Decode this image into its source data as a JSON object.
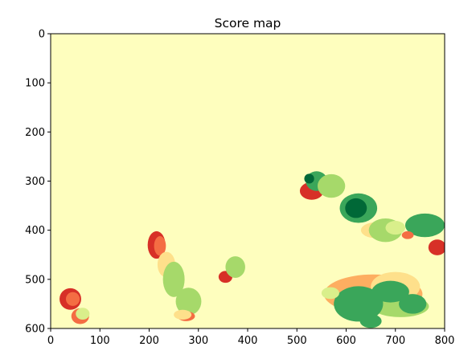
{
  "chart_data": {
    "type": "heatmap",
    "title": "Score map",
    "xlabel": "",
    "ylabel": "",
    "xlim": [
      0,
      800
    ],
    "ylim": [
      600,
      0
    ],
    "xticks": [
      0,
      100,
      200,
      300,
      400,
      500,
      600,
      700,
      800
    ],
    "yticks": [
      0,
      100,
      200,
      300,
      400,
      500,
      600
    ],
    "colormap": "RdYlGn",
    "background_color": "#fefebe",
    "colors": {
      "red": "#d73027",
      "orange": "#f46d43",
      "light_orange": "#fdae61",
      "tan": "#fee08b",
      "pale_yellow": "#fefebe",
      "yellow_green": "#d9ef8b",
      "light_green": "#a6d96a",
      "green": "#3aa65a",
      "dark_green": "#006837"
    },
    "regions": [
      {
        "cx": 40,
        "cy": 540,
        "rx": 22,
        "ry": 22,
        "color": "red"
      },
      {
        "cx": 45,
        "cy": 540,
        "rx": 14,
        "ry": 14,
        "color": "orange"
      },
      {
        "cx": 60,
        "cy": 575,
        "rx": 18,
        "ry": 16,
        "color": "orange"
      },
      {
        "cx": 65,
        "cy": 570,
        "rx": 14,
        "ry": 12,
        "color": "yellow_green"
      },
      {
        "cx": 215,
        "cy": 430,
        "rx": 18,
        "ry": 28,
        "color": "red"
      },
      {
        "cx": 222,
        "cy": 432,
        "rx": 12,
        "ry": 20,
        "color": "orange"
      },
      {
        "cx": 235,
        "cy": 470,
        "rx": 18,
        "ry": 26,
        "color": "tan"
      },
      {
        "cx": 250,
        "cy": 500,
        "rx": 22,
        "ry": 36,
        "color": "light_green"
      },
      {
        "cx": 280,
        "cy": 545,
        "rx": 26,
        "ry": 28,
        "color": "light_green"
      },
      {
        "cx": 275,
        "cy": 575,
        "rx": 18,
        "ry": 10,
        "color": "orange"
      },
      {
        "cx": 268,
        "cy": 572,
        "rx": 18,
        "ry": 10,
        "color": "tan"
      },
      {
        "cx": 355,
        "cy": 495,
        "rx": 14,
        "ry": 12,
        "color": "red"
      },
      {
        "cx": 375,
        "cy": 475,
        "rx": 20,
        "ry": 22,
        "color": "light_green"
      },
      {
        "cx": 530,
        "cy": 320,
        "rx": 24,
        "ry": 18,
        "color": "red"
      },
      {
        "cx": 540,
        "cy": 300,
        "rx": 22,
        "ry": 20,
        "color": "green"
      },
      {
        "cx": 525,
        "cy": 295,
        "rx": 10,
        "ry": 10,
        "color": "dark_green"
      },
      {
        "cx": 570,
        "cy": 310,
        "rx": 28,
        "ry": 24,
        "color": "light_green"
      },
      {
        "cx": 625,
        "cy": 355,
        "rx": 38,
        "ry": 30,
        "color": "green"
      },
      {
        "cx": 620,
        "cy": 355,
        "rx": 22,
        "ry": 20,
        "color": "dark_green"
      },
      {
        "cx": 660,
        "cy": 400,
        "rx": 30,
        "ry": 16,
        "color": "tan"
      },
      {
        "cx": 680,
        "cy": 400,
        "rx": 34,
        "ry": 24,
        "color": "light_green"
      },
      {
        "cx": 700,
        "cy": 395,
        "rx": 20,
        "ry": 14,
        "color": "yellow_green"
      },
      {
        "cx": 760,
        "cy": 390,
        "rx": 40,
        "ry": 24,
        "color": "green"
      },
      {
        "cx": 785,
        "cy": 435,
        "rx": 18,
        "ry": 16,
        "color": "red"
      },
      {
        "cx": 725,
        "cy": 410,
        "rx": 12,
        "ry": 8,
        "color": "orange"
      },
      {
        "cx": 655,
        "cy": 530,
        "rx": 100,
        "ry": 40,
        "color": "light_orange"
      },
      {
        "cx": 700,
        "cy": 515,
        "rx": 50,
        "ry": 30,
        "color": "tan"
      },
      {
        "cx": 710,
        "cy": 555,
        "rx": 58,
        "ry": 22,
        "color": "light_green"
      },
      {
        "cx": 625,
        "cy": 550,
        "rx": 50,
        "ry": 36,
        "color": "green"
      },
      {
        "cx": 690,
        "cy": 525,
        "rx": 38,
        "ry": 22,
        "color": "green"
      },
      {
        "cx": 735,
        "cy": 550,
        "rx": 28,
        "ry": 20,
        "color": "green"
      },
      {
        "cx": 650,
        "cy": 585,
        "rx": 22,
        "ry": 14,
        "color": "green"
      },
      {
        "cx": 568,
        "cy": 528,
        "rx": 18,
        "ry": 12,
        "color": "yellow_green"
      }
    ]
  }
}
